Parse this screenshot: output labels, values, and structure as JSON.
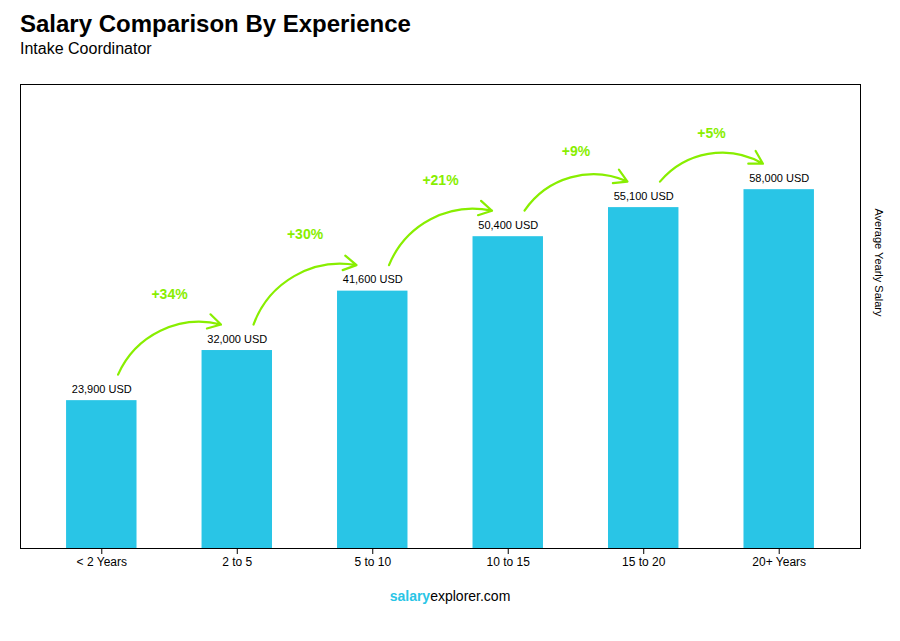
{
  "chart_data": {
    "type": "bar",
    "title": "Salary Comparison By Experience",
    "subtitle": "Intake Coordinator",
    "categories": [
      "< 2 Years",
      "2 to 5",
      "5 to 10",
      "10 to 15",
      "15 to 20",
      "20+ Years"
    ],
    "values": [
      23900,
      32000,
      41600,
      50400,
      55100,
      58000
    ],
    "value_labels": [
      "23,900 USD",
      "32,000 USD",
      "41,600 USD",
      "50,400 USD",
      "55,100 USD",
      "58,000 USD"
    ],
    "data_labels": true,
    "color": "#29C5E6",
    "ylabel": "Average Yearly Salary",
    "ylim": [
      0,
      75000
    ],
    "tick_labels": "x",
    "annotations": [
      {
        "text": "+34%",
        "color": "#88EE00"
      },
      {
        "text": "+30%",
        "color": "#88EE00"
      },
      {
        "text": "+21%",
        "color": "#88EE00"
      },
      {
        "text": "+9%",
        "color": "#88EE00"
      },
      {
        "text": "+5%",
        "color": "#88EE00"
      }
    ],
    "caption": [
      "salary",
      "explorer.com"
    ]
  }
}
